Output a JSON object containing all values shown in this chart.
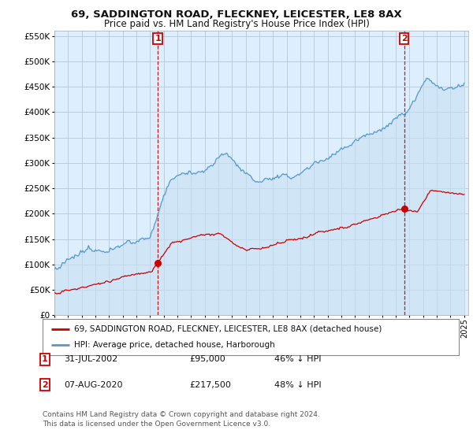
{
  "title": "69, SADDINGTON ROAD, FLECKNEY, LEICESTER, LE8 8AX",
  "subtitle": "Price paid vs. HM Land Registry's House Price Index (HPI)",
  "background_color": "#ffffff",
  "plot_bg_color": "#ddeeff",
  "grid_color": "#bbccdd",
  "hpi_color": "#5599cc",
  "hpi_fill_color": "#c8dff0",
  "price_color": "#cc0000",
  "sale1": {
    "date_num": 2002.58,
    "price": 95000,
    "label": "1"
  },
  "sale2": {
    "date_num": 2020.6,
    "price": 217500,
    "label": "2"
  },
  "ylim": [
    0,
    560000
  ],
  "ytick_vals": [
    0,
    50000,
    100000,
    150000,
    200000,
    250000,
    300000,
    350000,
    400000,
    450000,
    500000,
    550000
  ],
  "xlim": [
    1995,
    2025.3
  ],
  "xtick_years": [
    1995,
    1996,
    1997,
    1998,
    1999,
    2000,
    2001,
    2002,
    2003,
    2004,
    2005,
    2006,
    2007,
    2008,
    2009,
    2010,
    2011,
    2012,
    2013,
    2014,
    2015,
    2016,
    2017,
    2018,
    2019,
    2020,
    2021,
    2022,
    2023,
    2024,
    2025
  ],
  "legend_label_price": "69, SADDINGTON ROAD, FLECKNEY, LEICESTER, LE8 8AX (detached house)",
  "legend_label_hpi": "HPI: Average price, detached house, Harborough",
  "table_rows": [
    {
      "num": "1",
      "date": "31-JUL-2002",
      "price": "£95,000",
      "pct": "46% ↓ HPI"
    },
    {
      "num": "2",
      "date": "07-AUG-2020",
      "price": "£217,500",
      "pct": "48% ↓ HPI"
    }
  ],
  "footnote": "Contains HM Land Registry data © Crown copyright and database right 2024.\nThis data is licensed under the Open Government Licence v3.0."
}
